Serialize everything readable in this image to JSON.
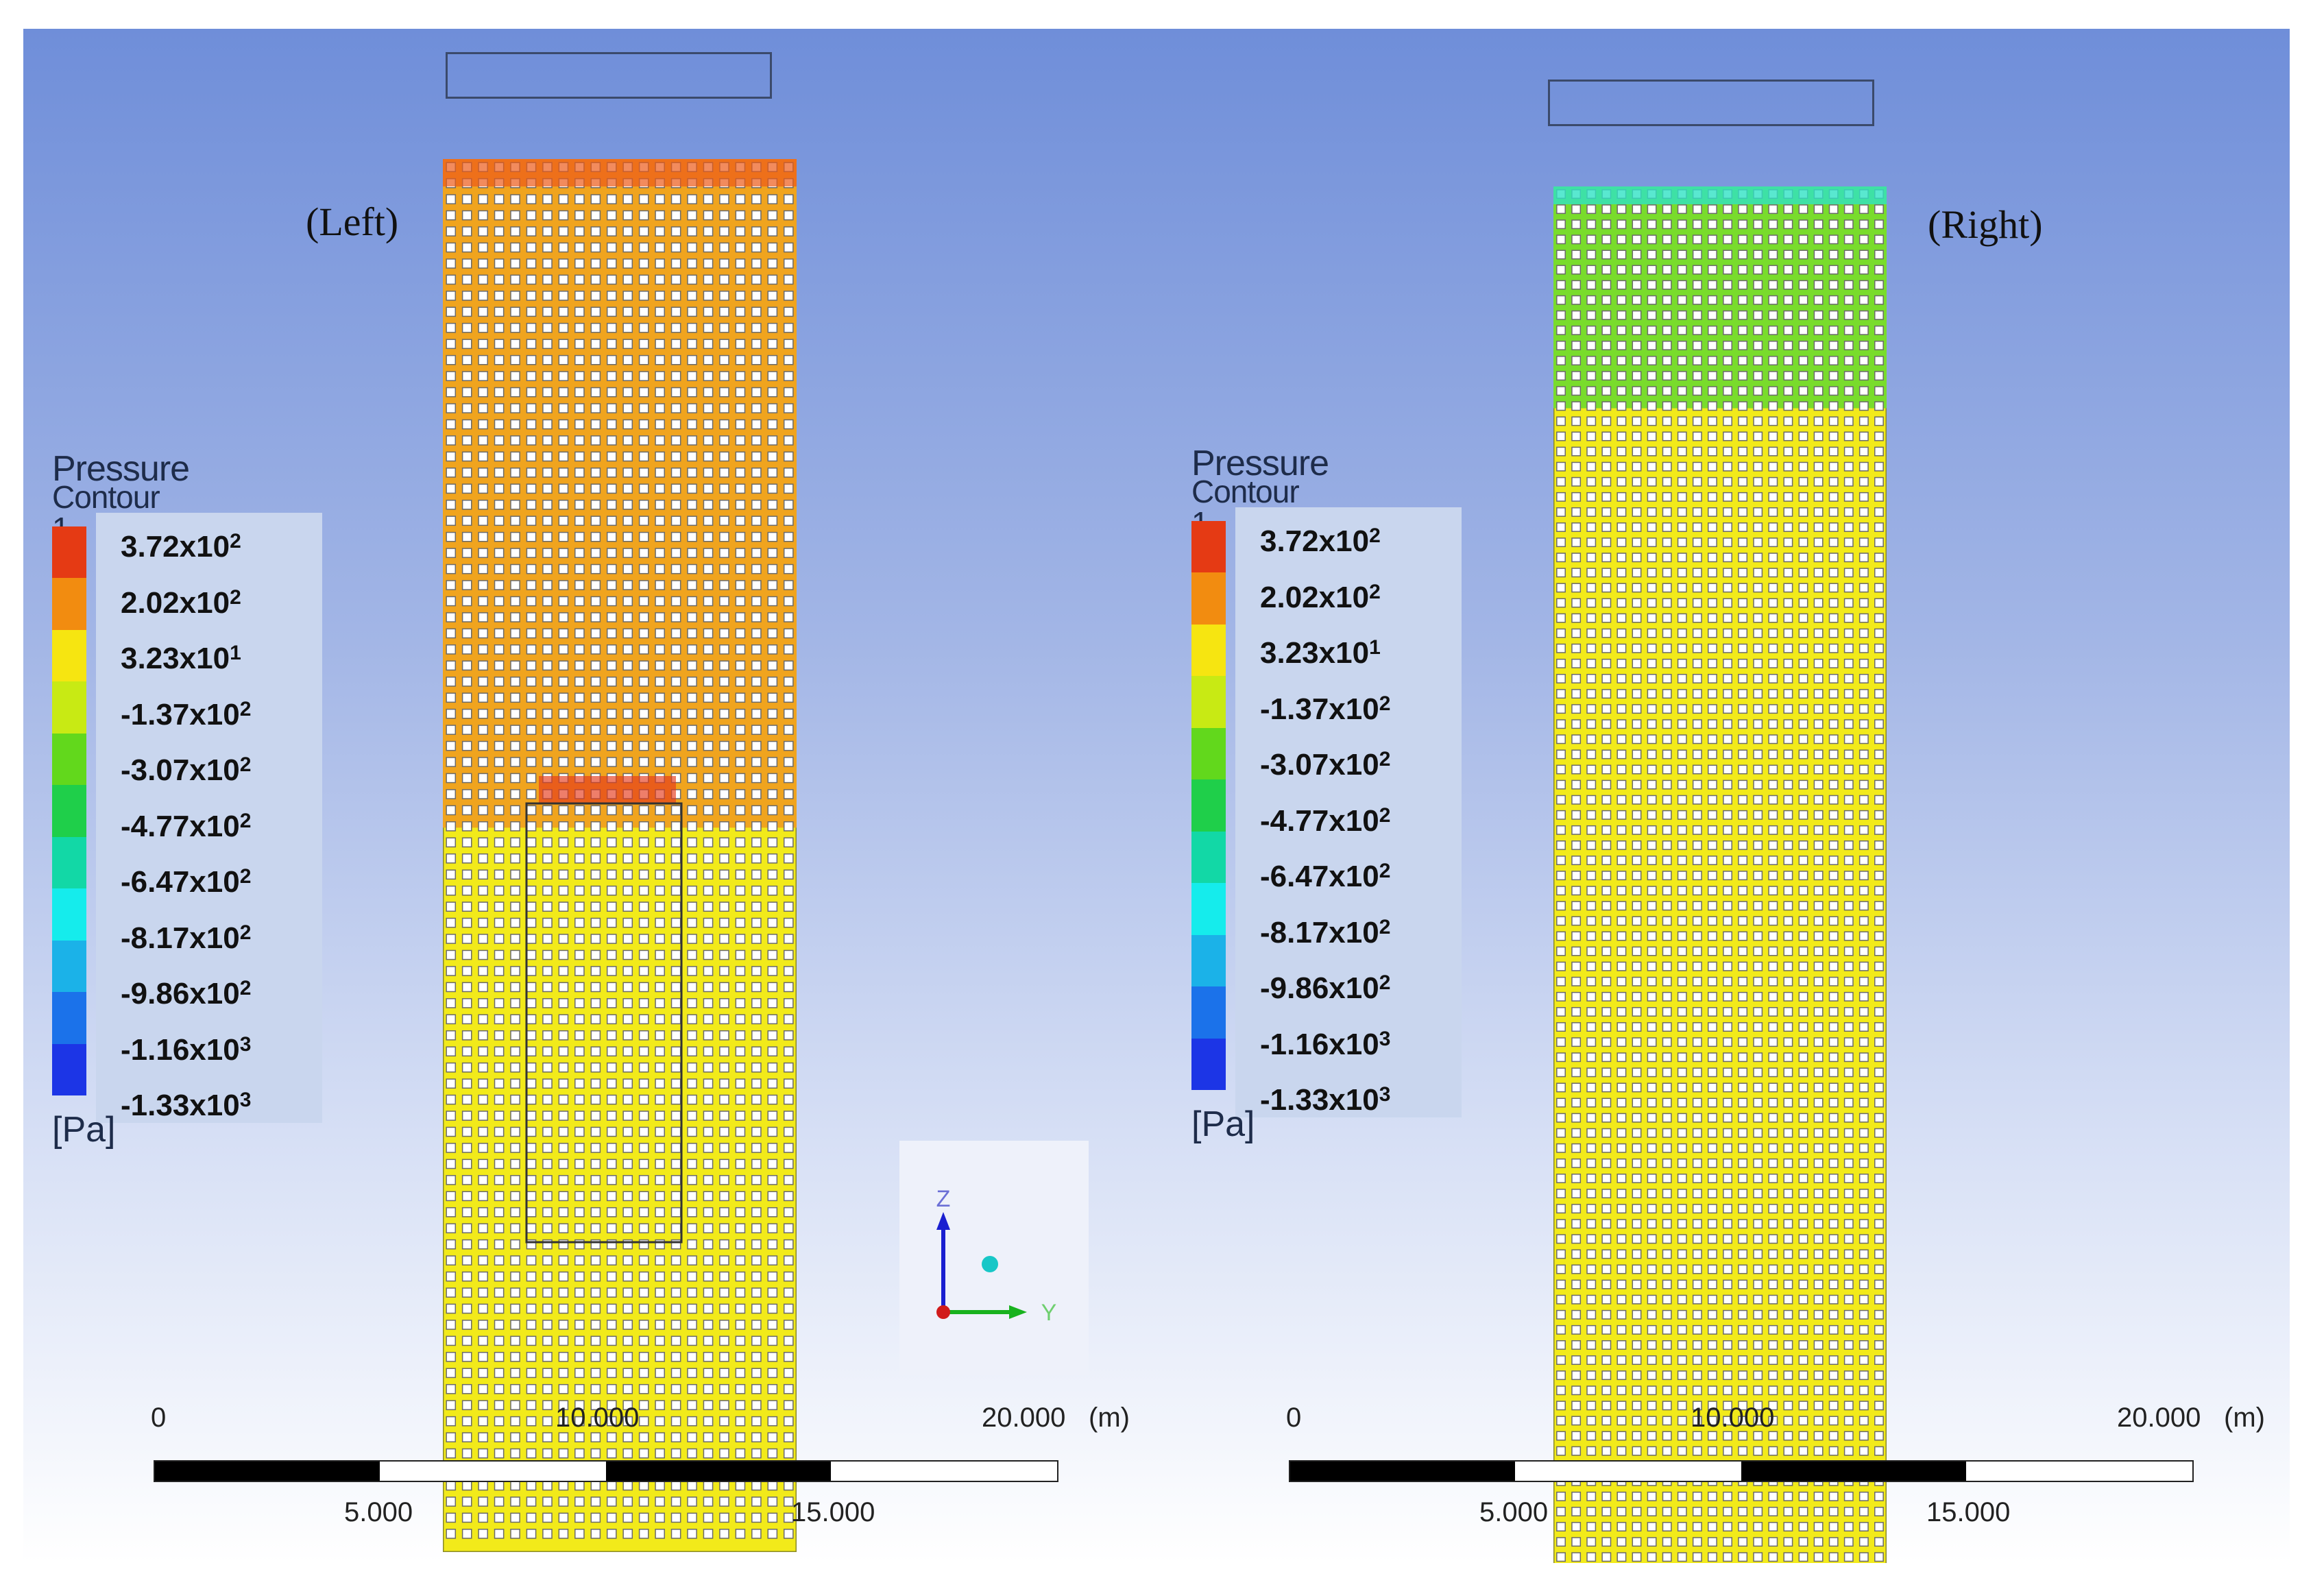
{
  "legend": {
    "title": "Pressure",
    "subtitle": "Contour 1",
    "unit": "[Pa]",
    "labels": [
      {
        "m": "3.72x10",
        "e": "2"
      },
      {
        "m": "2.02x10",
        "e": "2"
      },
      {
        "m": "3.23x10",
        "e": "1"
      },
      {
        "m": "-1.37x10",
        "e": "2"
      },
      {
        "m": "-3.07x10",
        "e": "2"
      },
      {
        "m": "-4.77x10",
        "e": "2"
      },
      {
        "m": "-6.47x10",
        "e": "2"
      },
      {
        "m": "-8.17x10",
        "e": "2"
      },
      {
        "m": "-9.86x10",
        "e": "2"
      },
      {
        "m": "-1.16x10",
        "e": "3"
      },
      {
        "m": "-1.33x10",
        "e": "3"
      }
    ],
    "colors": [
      "#e53a14",
      "#f28c10",
      "#f6e511",
      "#c8ea14",
      "#62d81c",
      "#1fcf4a",
      "#12d8a6",
      "#15ecec",
      "#1bb2e8",
      "#1b72ea",
      "#1c35e6"
    ]
  },
  "panels": {
    "left_label": "(Left)",
    "right_label": "(Right)"
  },
  "scale_bar": {
    "top_labels": [
      "0",
      "10.000",
      "20.000",
      "(m)"
    ],
    "bottom_labels": [
      "5.000",
      "15.000"
    ]
  },
  "axes": {
    "z_label": "Z",
    "y_label": "Y"
  },
  "colors": {
    "structure_yellow": "#f2ea1a",
    "structure_orange": "#f0a41e",
    "structure_green": "#79dc2c"
  }
}
